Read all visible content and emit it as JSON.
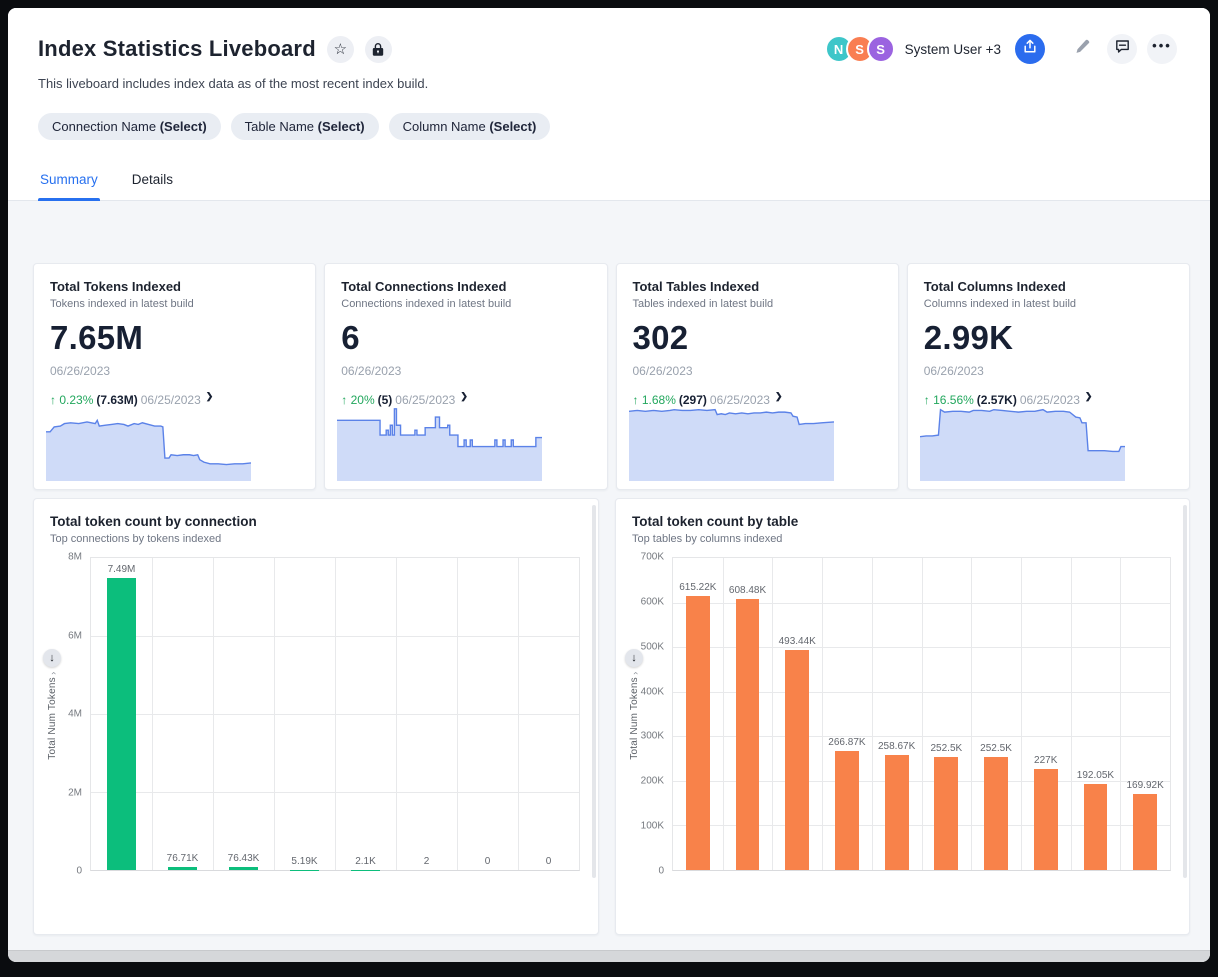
{
  "header": {
    "title": "Index Statistics Liveboard",
    "description": "This liveboard includes index data as of the most recent index build.",
    "authors_label": "System User +3",
    "avatars": [
      {
        "letter": "N",
        "color": "#3ec6c9"
      },
      {
        "letter": "S",
        "color": "#f97e52"
      },
      {
        "letter": "S",
        "color": "#9b63e0"
      }
    ],
    "accent_color": "#2b6cee"
  },
  "filters": [
    {
      "name": "Connection Name",
      "suffix": "(Select)"
    },
    {
      "name": "Table Name",
      "suffix": "(Select)"
    },
    {
      "name": "Column Name",
      "suffix": "(Select)"
    }
  ],
  "tabs": [
    {
      "label": "Summary",
      "active": true
    },
    {
      "label": "Details",
      "active": false
    }
  ],
  "kpis": [
    {
      "title": "Total Tokens Indexed",
      "subtitle": "Tokens indexed in latest build",
      "value": "7.65M",
      "date": "06/26/2023",
      "change": {
        "direction": "up",
        "pct": "0.23%",
        "previous": "(7.63M)",
        "date": "06/25/2023"
      },
      "spark_points": [
        [
          0,
          60
        ],
        [
          2,
          60
        ],
        [
          4,
          66
        ],
        [
          7,
          67
        ],
        [
          9,
          70
        ],
        [
          12,
          71
        ],
        [
          16,
          70
        ],
        [
          20,
          72
        ],
        [
          24,
          70
        ],
        [
          25,
          74
        ],
        [
          26,
          67
        ],
        [
          29,
          68
        ],
        [
          32,
          69
        ],
        [
          35,
          70
        ],
        [
          38,
          69
        ],
        [
          40,
          67
        ],
        [
          43,
          70
        ],
        [
          45,
          69
        ],
        [
          47,
          71
        ],
        [
          50,
          69
        ],
        [
          53,
          67
        ],
        [
          56,
          67
        ],
        [
          57,
          66
        ],
        [
          58,
          28
        ],
        [
          60,
          28
        ],
        [
          61,
          32
        ],
        [
          64,
          31
        ],
        [
          67,
          32
        ],
        [
          70,
          32
        ],
        [
          72,
          31
        ],
        [
          74,
          32
        ],
        [
          75,
          26
        ],
        [
          77,
          23
        ],
        [
          80,
          21
        ],
        [
          84,
          21
        ],
        [
          88,
          20
        ],
        [
          92,
          21
        ],
        [
          96,
          21
        ],
        [
          100,
          22
        ]
      ]
    },
    {
      "title": "Total Connections Indexed",
      "subtitle": "Connections indexed in latest build",
      "value": "6",
      "date": "06/26/2023",
      "change": {
        "direction": "up",
        "pct": "20%",
        "previous": "(5)",
        "date": "06/25/2023"
      },
      "spark_points": [
        [
          0,
          74
        ],
        [
          21,
          74
        ],
        [
          21,
          56
        ],
        [
          24,
          56
        ],
        [
          24,
          62
        ],
        [
          25,
          62
        ],
        [
          25,
          56
        ],
        [
          26,
          56
        ],
        [
          26,
          68
        ],
        [
          27,
          68
        ],
        [
          27,
          56
        ],
        [
          28,
          56
        ],
        [
          28,
          88
        ],
        [
          29,
          88
        ],
        [
          29,
          68
        ],
        [
          31,
          68
        ],
        [
          31,
          56
        ],
        [
          38,
          56
        ],
        [
          38,
          62
        ],
        [
          39,
          62
        ],
        [
          39,
          56
        ],
        [
          43,
          56
        ],
        [
          43,
          65
        ],
        [
          48,
          65
        ],
        [
          48,
          78
        ],
        [
          50,
          78
        ],
        [
          50,
          65
        ],
        [
          54,
          65
        ],
        [
          54,
          68
        ],
        [
          55,
          68
        ],
        [
          55,
          56
        ],
        [
          59,
          56
        ],
        [
          59,
          42
        ],
        [
          62,
          42
        ],
        [
          62,
          50
        ],
        [
          63,
          50
        ],
        [
          63,
          42
        ],
        [
          65,
          42
        ],
        [
          65,
          50
        ],
        [
          66,
          50
        ],
        [
          66,
          42
        ],
        [
          77,
          42
        ],
        [
          77,
          50
        ],
        [
          78,
          50
        ],
        [
          78,
          42
        ],
        [
          81,
          42
        ],
        [
          81,
          50
        ],
        [
          82,
          50
        ],
        [
          82,
          42
        ],
        [
          85,
          42
        ],
        [
          85,
          50
        ],
        [
          86,
          50
        ],
        [
          86,
          42
        ],
        [
          97,
          42
        ],
        [
          97,
          53
        ],
        [
          100,
          53
        ]
      ]
    },
    {
      "title": "Total Tables Indexed",
      "subtitle": "Tables indexed in latest build",
      "value": "302",
      "date": "06/26/2023",
      "change": {
        "direction": "up",
        "pct": "1.68%",
        "previous": "(297)",
        "date": "06/25/2023"
      },
      "spark_points": [
        [
          0,
          85
        ],
        [
          4,
          86
        ],
        [
          8,
          85
        ],
        [
          12,
          86
        ],
        [
          16,
          85
        ],
        [
          20,
          86
        ],
        [
          22,
          87
        ],
        [
          26,
          86
        ],
        [
          30,
          86
        ],
        [
          34,
          87
        ],
        [
          38,
          86
        ],
        [
          42,
          87
        ],
        [
          43,
          81
        ],
        [
          45,
          82
        ],
        [
          47,
          81
        ],
        [
          49,
          83
        ],
        [
          52,
          82
        ],
        [
          55,
          83
        ],
        [
          58,
          82
        ],
        [
          61,
          83
        ],
        [
          64,
          83
        ],
        [
          67,
          84
        ],
        [
          70,
          83
        ],
        [
          73,
          84
        ],
        [
          76,
          84
        ],
        [
          79,
          83
        ],
        [
          80,
          79
        ],
        [
          82,
          78
        ],
        [
          83,
          69
        ],
        [
          86,
          70
        ],
        [
          90,
          70
        ],
        [
          94,
          71
        ],
        [
          100,
          72
        ]
      ]
    },
    {
      "title": "Total Columns Indexed",
      "subtitle": "Columns indexed in latest build",
      "value": "2.99K",
      "date": "06/26/2023",
      "change": {
        "direction": "up",
        "pct": "16.56%",
        "previous": "(2.57K)",
        "date": "06/25/2023"
      },
      "spark_points": [
        [
          0,
          54
        ],
        [
          3,
          55
        ],
        [
          6,
          55
        ],
        [
          9,
          56
        ],
        [
          10,
          87
        ],
        [
          12,
          84
        ],
        [
          16,
          85
        ],
        [
          20,
          85
        ],
        [
          24,
          84
        ],
        [
          26,
          86
        ],
        [
          30,
          86
        ],
        [
          34,
          85
        ],
        [
          36,
          87
        ],
        [
          40,
          86
        ],
        [
          44,
          85
        ],
        [
          48,
          84
        ],
        [
          52,
          85
        ],
        [
          56,
          85
        ],
        [
          60,
          87
        ],
        [
          62,
          84
        ],
        [
          66,
          85
        ],
        [
          70,
          85
        ],
        [
          73,
          84
        ],
        [
          76,
          78
        ],
        [
          78,
          77
        ],
        [
          79,
          71
        ],
        [
          81,
          71
        ],
        [
          82,
          37
        ],
        [
          86,
          37
        ],
        [
          90,
          37
        ],
        [
          94,
          36
        ],
        [
          97,
          36
        ],
        [
          98,
          42
        ],
        [
          100,
          42
        ]
      ]
    }
  ],
  "chart_data": [
    {
      "id": "tokens-by-connection",
      "type": "bar",
      "title": "Total token count by connection",
      "subtitle": "Top connections by tokens indexed",
      "ylabel": "Total Num Tokens",
      "bar_color": "#0cbe7c",
      "ylim": [
        0,
        8000000
      ],
      "grid": true,
      "yticks": [
        {
          "v": 0,
          "label": "0"
        },
        {
          "v": 2000000,
          "label": "2M"
        },
        {
          "v": 4000000,
          "label": "4M"
        },
        {
          "v": 6000000,
          "label": "6M"
        },
        {
          "v": 8000000,
          "label": "8M"
        }
      ],
      "values": [
        7490000,
        76710,
        76430,
        5190,
        2100,
        2,
        0,
        0
      ],
      "value_labels": [
        "7.49M",
        "76.71K",
        "76.43K",
        "5.19K",
        "2.1K",
        "2",
        "0",
        "0"
      ],
      "x_tick_labels_visible": false
    },
    {
      "id": "tokens-by-table",
      "type": "bar",
      "title": "Total token count by table",
      "subtitle": "Top tables by columns indexed",
      "ylabel": "Total Num Tokens",
      "bar_color": "#f8824a",
      "ylim": [
        0,
        700000
      ],
      "grid": true,
      "yticks": [
        {
          "v": 0,
          "label": "0"
        },
        {
          "v": 100000,
          "label": "100K"
        },
        {
          "v": 200000,
          "label": "200K"
        },
        {
          "v": 300000,
          "label": "300K"
        },
        {
          "v": 400000,
          "label": "400K"
        },
        {
          "v": 500000,
          "label": "500K"
        },
        {
          "v": 600000,
          "label": "600K"
        },
        {
          "v": 700000,
          "label": "700K"
        }
      ],
      "values": [
        615220,
        608480,
        493440,
        266870,
        258670,
        252500,
        252500,
        227000,
        192050,
        169920
      ],
      "value_labels": [
        "615.22K",
        "608.48K",
        "493.44K",
        "266.87K",
        "258.67K",
        "252.5K",
        "252.5K",
        "227K",
        "192.05K",
        "169.92K"
      ],
      "x_tick_labels_visible": false
    }
  ],
  "sparkline_colors": {
    "line": "#5b82e8",
    "fill": "#cfdbf8"
  },
  "status_colors": {
    "positive": "#22a75d"
  }
}
